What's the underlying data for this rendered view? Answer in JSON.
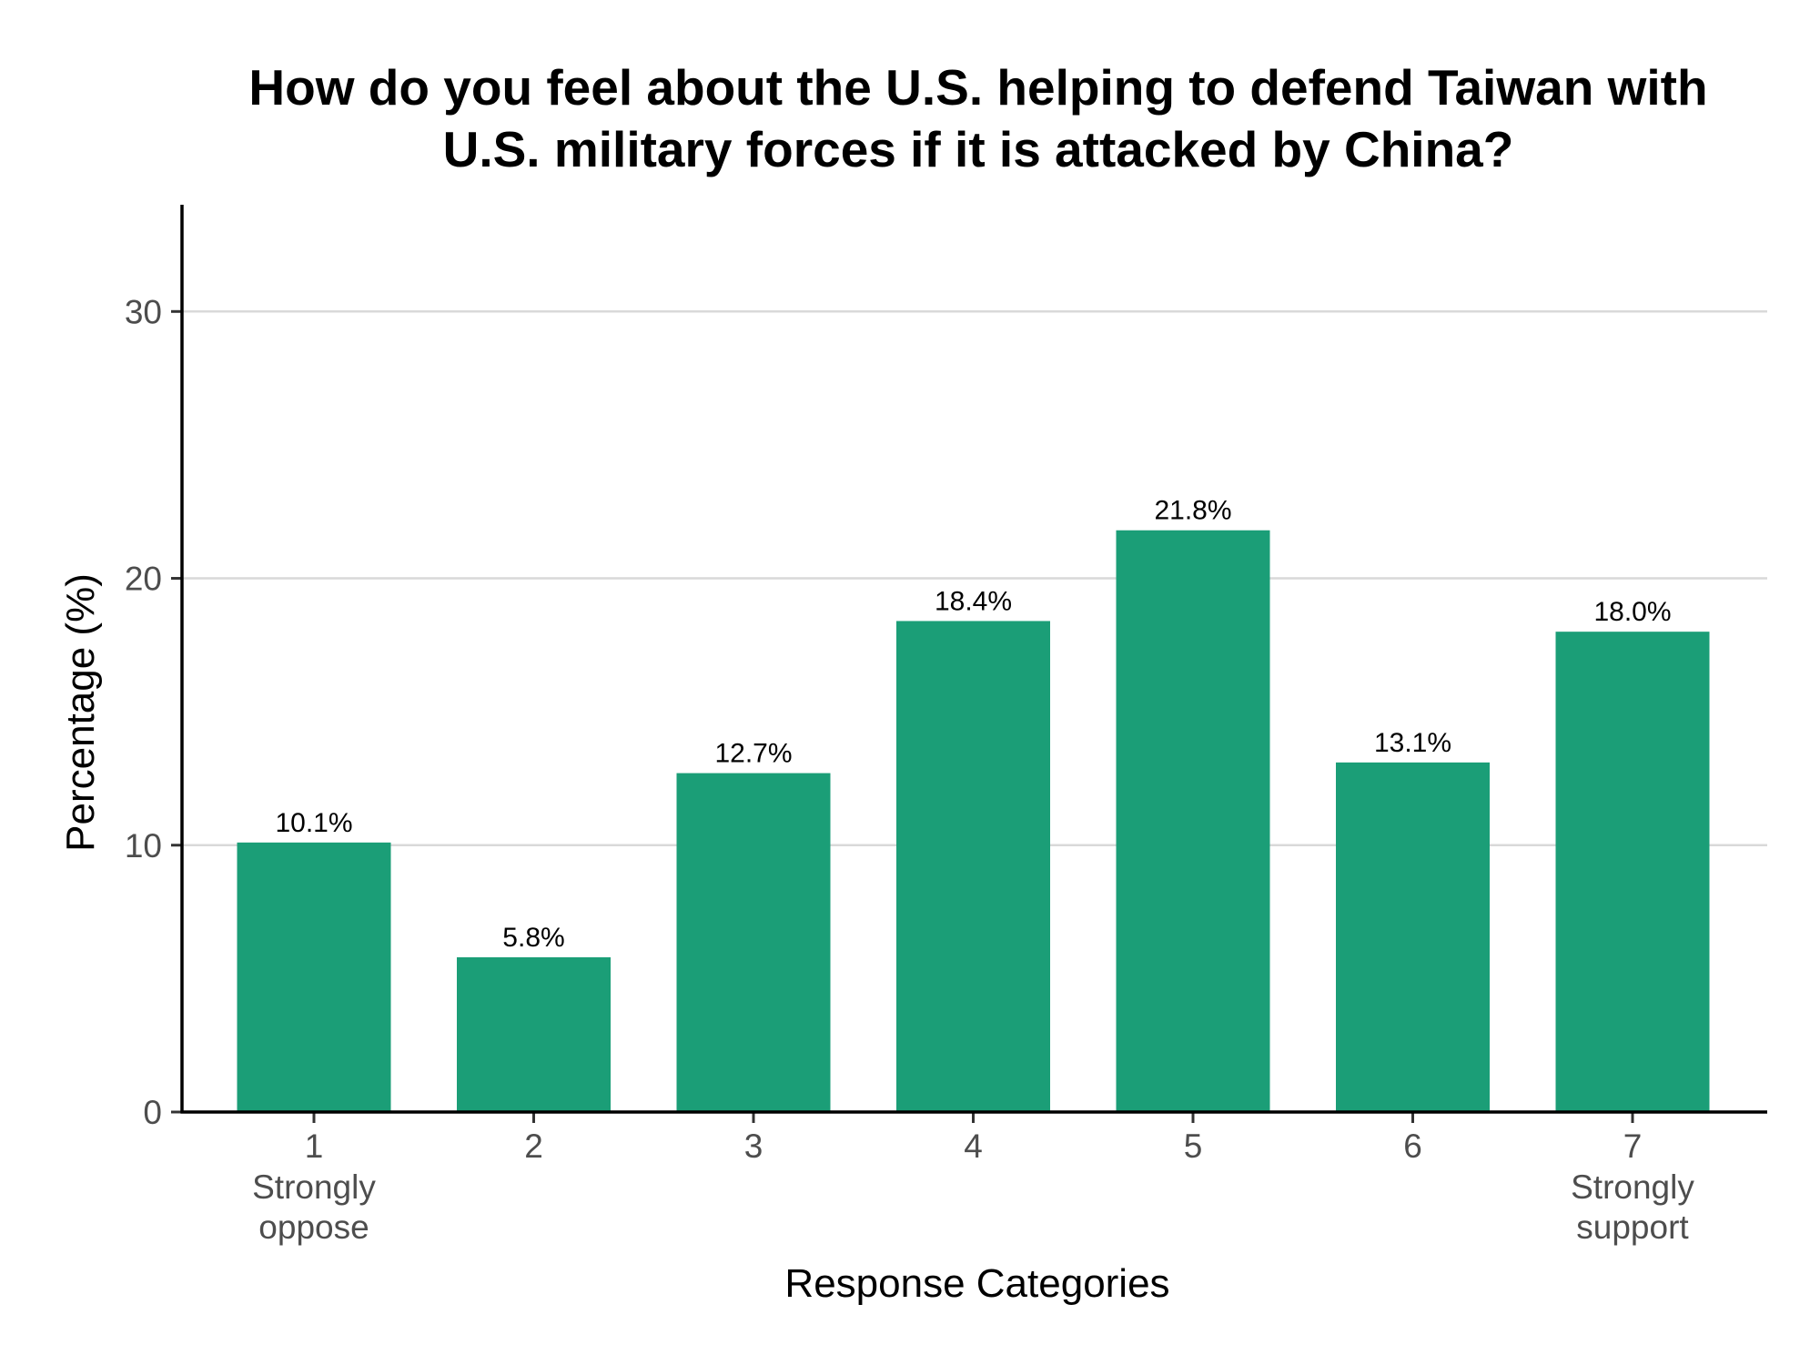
{
  "chart_data": {
    "type": "bar",
    "title_lines": [
      "How do you feel about the U.S. helping to defend Taiwan with",
      "U.S. military forces if it is attacked by China?"
    ],
    "xlabel": "Response Categories",
    "ylabel": "Percentage (%)",
    "categories": [
      "1",
      "2",
      "3",
      "4",
      "5",
      "6",
      "7"
    ],
    "category_sublabels": [
      [
        "Strongly",
        "oppose"
      ],
      [],
      [],
      [],
      [],
      [],
      [
        "Strongly",
        "support"
      ]
    ],
    "values": [
      10.1,
      5.8,
      12.7,
      18.4,
      21.8,
      13.1,
      18.0
    ],
    "value_labels": [
      "10.1%",
      "5.8%",
      "12.7%",
      "18.4%",
      "21.8%",
      "13.1%",
      "18.0%"
    ],
    "ylim": [
      0,
      34
    ],
    "yticks": [
      0,
      10,
      20,
      30
    ],
    "ytick_labels": [
      "0",
      "10",
      "20",
      "30"
    ],
    "grid": "horizontal",
    "bar_color": "#1b9e77"
  }
}
